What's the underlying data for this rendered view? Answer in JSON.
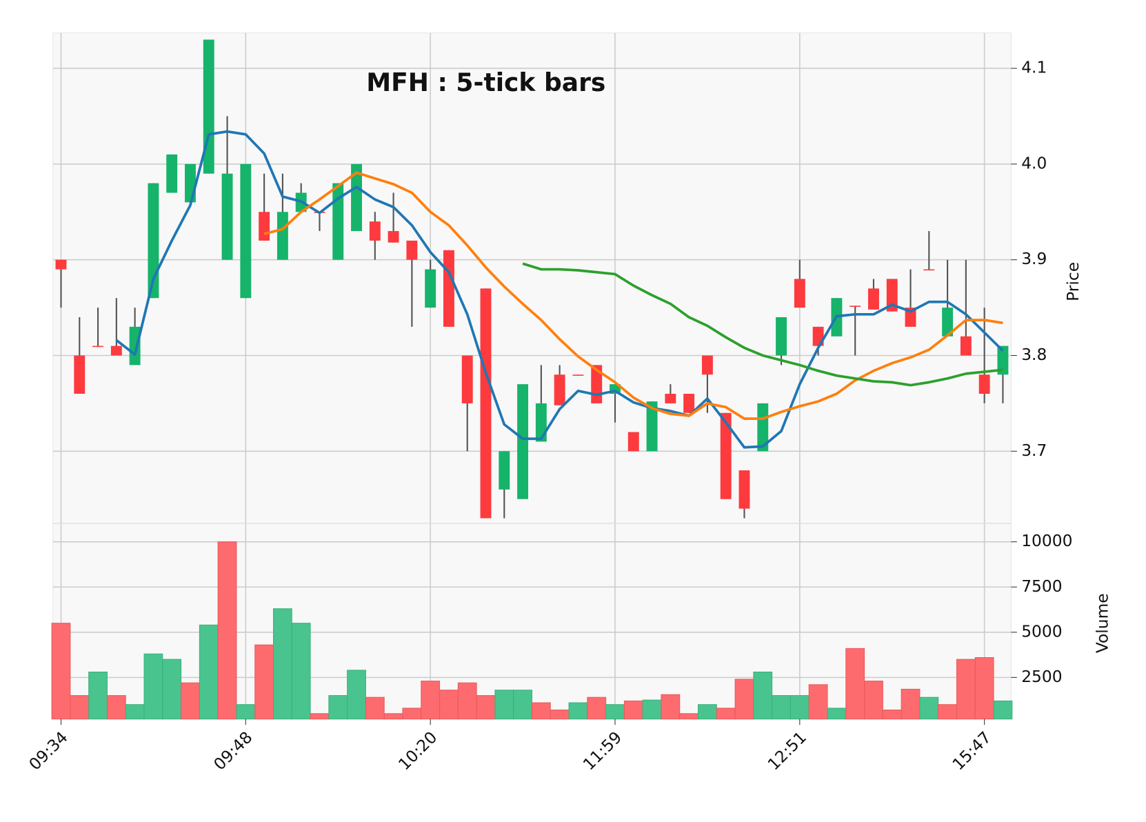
{
  "chart_data": {
    "type": "candlestick",
    "title": "MFH : 5-tick bars",
    "categories": [
      "09:34",
      null,
      null,
      null,
      null,
      null,
      null,
      null,
      null,
      null,
      "09:48",
      null,
      null,
      null,
      null,
      null,
      null,
      null,
      null,
      null,
      "10:20",
      null,
      null,
      null,
      null,
      null,
      null,
      null,
      null,
      null,
      "11:59",
      null,
      null,
      null,
      null,
      null,
      null,
      null,
      null,
      null,
      "12:51",
      null,
      null,
      null,
      null,
      null,
      null,
      null,
      null,
      null,
      "15:47",
      null
    ],
    "open": [
      3.9,
      3.8,
      3.81,
      3.81,
      3.79,
      3.86,
      3.97,
      3.96,
      3.99,
      3.9,
      3.86,
      3.95,
      3.9,
      3.95,
      3.95,
      3.9,
      3.93,
      3.94,
      3.93,
      3.92,
      3.85,
      3.91,
      3.8,
      3.87,
      3.66,
      3.65,
      3.71,
      3.78,
      3.78,
      3.79,
      3.76,
      3.72,
      3.7,
      3.76,
      3.76,
      3.8,
      3.74,
      3.68,
      3.7,
      3.8,
      3.88,
      3.83,
      3.82,
      3.852,
      3.87,
      3.88,
      3.85,
      3.89,
      3.82,
      3.82,
      3.78,
      3.78
    ],
    "high": [
      3.9,
      3.84,
      3.85,
      3.86,
      3.85,
      3.98,
      4.01,
      4.0,
      4.13,
      4.05,
      4.0,
      3.99,
      3.99,
      3.98,
      3.95,
      3.98,
      4.0,
      3.95,
      3.97,
      3.92,
      3.9,
      3.91,
      3.8,
      3.87,
      3.7,
      3.77,
      3.79,
      3.79,
      3.78,
      3.79,
      3.77,
      3.72,
      3.752,
      3.77,
      3.76,
      3.8,
      3.74,
      3.68,
      3.75,
      3.84,
      3.9,
      3.83,
      3.86,
      3.852,
      3.88,
      3.88,
      3.89,
      3.93,
      3.9,
      3.9,
      3.85,
      3.81
    ],
    "low": [
      3.85,
      3.76,
      3.81,
      3.8,
      3.79,
      3.86,
      3.97,
      3.96,
      3.99,
      3.9,
      3.86,
      3.92,
      3.9,
      3.95,
      3.93,
      3.9,
      3.93,
      3.9,
      3.918,
      3.83,
      3.85,
      3.83,
      3.7,
      3.63,
      3.63,
      3.65,
      3.71,
      3.748,
      3.779,
      3.75,
      3.73,
      3.7,
      3.7,
      3.75,
      3.74,
      3.74,
      3.65,
      3.63,
      3.7,
      3.79,
      3.85,
      3.8,
      3.82,
      3.8,
      3.848,
      3.846,
      3.83,
      3.889,
      3.82,
      3.8,
      3.75,
      3.75
    ],
    "close": [
      3.89,
      3.76,
      3.809,
      3.8,
      3.83,
      3.98,
      4.01,
      4.0,
      4.13,
      3.99,
      4.0,
      3.92,
      3.95,
      3.97,
      3.949,
      3.98,
      4.0,
      3.92,
      3.918,
      3.9,
      3.89,
      3.83,
      3.75,
      3.63,
      3.7,
      3.77,
      3.75,
      3.748,
      3.779,
      3.75,
      3.77,
      3.7,
      3.752,
      3.75,
      3.74,
      3.78,
      3.65,
      3.64,
      3.75,
      3.84,
      3.85,
      3.81,
      3.86,
      3.851,
      3.848,
      3.846,
      3.83,
      3.889,
      3.85,
      3.8,
      3.76,
      3.81
    ],
    "volume": [
      5500,
      1500,
      2800,
      1500,
      1000,
      3800,
      3500,
      2200,
      5400,
      10000,
      1000,
      4300,
      6300,
      5500,
      500,
      1500,
      2900,
      1400,
      500,
      800,
      2300,
      1800,
      2200,
      1500,
      1800,
      1800,
      1100,
      700,
      1100,
      1400,
      1000,
      1200,
      1250,
      1550,
      500,
      1000,
      800,
      2400,
      2800,
      1500,
      1500,
      2100,
      800,
      4100,
      2300,
      700,
      1850,
      1400,
      1000,
      3500,
      3600,
      1200
    ],
    "moving_averages": [
      {
        "color": "#1f77b4",
        "values": [
          null,
          null,
          null,
          3.816,
          3.801,
          3.88,
          3.92,
          3.957,
          4.031,
          4.034,
          4.031,
          4.011,
          3.966,
          3.961,
          3.949,
          3.964,
          3.976,
          3.963,
          3.955,
          3.936,
          3.908,
          3.887,
          3.843,
          3.782,
          3.728,
          3.713,
          3.713,
          3.744,
          3.763,
          3.759,
          3.763,
          3.751,
          3.745,
          3.742,
          3.737,
          3.755,
          3.73,
          3.704,
          3.705,
          3.721,
          3.77,
          3.808,
          3.841,
          3.843,
          3.843,
          3.853,
          3.846,
          3.856,
          3.856,
          3.843,
          3.824,
          3.805
        ]
      },
      {
        "color": "#ff7f0e",
        "values": [
          null,
          null,
          null,
          null,
          null,
          null,
          null,
          null,
          null,
          null,
          null,
          3.927,
          3.932,
          3.95,
          3.963,
          3.977,
          3.991,
          3.985,
          3.979,
          3.97,
          3.95,
          3.936,
          3.915,
          3.892,
          3.872,
          3.854,
          3.837,
          3.817,
          3.799,
          3.785,
          3.772,
          3.756,
          3.745,
          3.739,
          3.737,
          3.75,
          3.746,
          3.734,
          3.734,
          3.741,
          3.747,
          3.752,
          3.76,
          3.774,
          3.784,
          3.792,
          3.798,
          3.806,
          3.821,
          3.837,
          3.837,
          3.834
        ]
      },
      {
        "color": "#2ca02c",
        "values": [
          null,
          null,
          null,
          null,
          null,
          null,
          null,
          null,
          null,
          null,
          null,
          null,
          null,
          null,
          null,
          null,
          null,
          null,
          null,
          null,
          null,
          null,
          null,
          null,
          null,
          3.896,
          3.89,
          3.89,
          3.889,
          3.887,
          3.885,
          3.873,
          3.863,
          3.854,
          3.84,
          3.831,
          3.819,
          3.808,
          3.8,
          3.795,
          3.79,
          3.784,
          3.779,
          3.776,
          3.773,
          3.772,
          3.769,
          3.772,
          3.776,
          3.781,
          3.783,
          3.785
        ]
      }
    ],
    "ylabel": "Price",
    "ylim": [
      3.625,
      4.137
    ],
    "yticks": [
      3.7,
      3.8,
      3.9,
      {
        "value": 4,
        "label": "4.0"
      },
      4.1
    ],
    "volume_label": "Volume",
    "volume_ylim": [
      200,
      11000
    ],
    "volume_yticks": [
      2500,
      5000,
      7500,
      10000
    ],
    "up_color": "#16b36b",
    "down_color": "#fd3a3e",
    "volume_up_color": "#4ac48e",
    "volume_down_color": "#fd6b6e",
    "wick_color": "#555555",
    "grid": true
  }
}
